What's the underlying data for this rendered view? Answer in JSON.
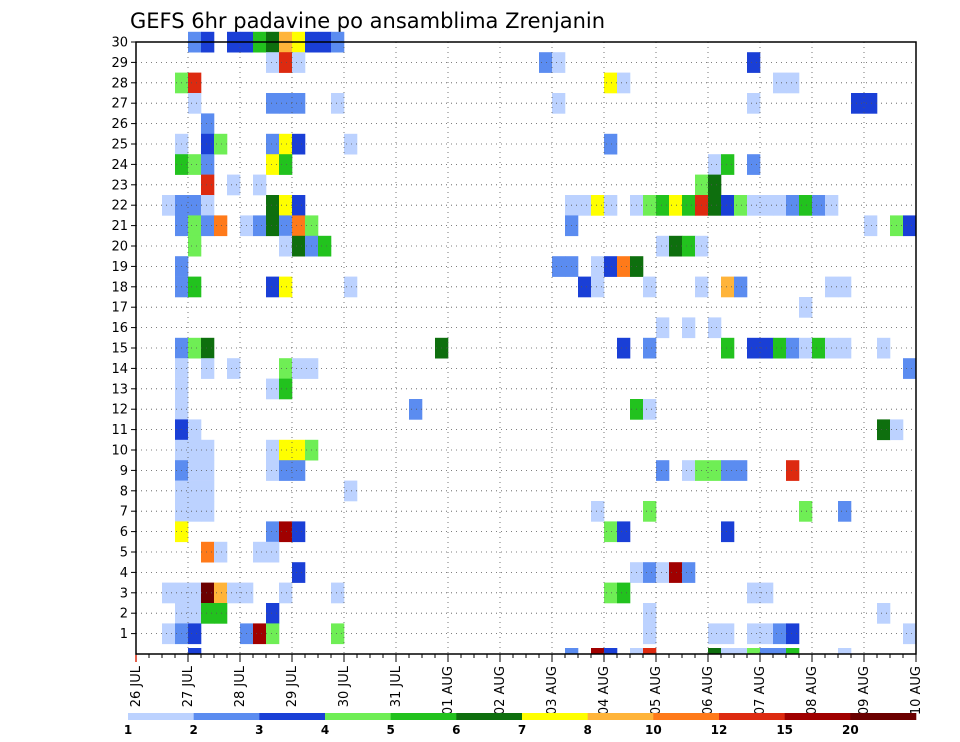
{
  "chart_data": {
    "type": "heatmap",
    "title": "GEFS 6hr padavine po ansamblima Zrenjanin",
    "xlabel": "",
    "ylabel": "",
    "x_tick_labels": [
      "26 JUL",
      "27 JUL",
      "28 JUL",
      "29 JUL",
      "30 JUL",
      "31 JUL",
      "01 AUG",
      "02 AUG",
      "03 AUG",
      "04 AUG",
      "05 AUG",
      "06 AUG",
      "07 AUG",
      "08 AUG",
      "09 AUG",
      "10 AUG"
    ],
    "y_tick_labels": [
      "1",
      "2",
      "3",
      "4",
      "5",
      "6",
      "7",
      "8",
      "9",
      "10",
      "11",
      "12",
      "13",
      "14",
      "15",
      "16",
      "17",
      "18",
      "19",
      "20",
      "21",
      "22",
      "23",
      "24",
      "25",
      "26",
      "27",
      "28",
      "29",
      "30"
    ],
    "x_step_hours": 6,
    "n_time_steps": 60,
    "ylim": [
      0,
      30
    ],
    "grid": true,
    "colorbar": {
      "placement": "bottom",
      "tick_labels": [
        "1",
        "2",
        "3",
        "4",
        "5",
        "6",
        "7",
        "8",
        "10",
        "12",
        "15",
        "20"
      ],
      "colors": [
        "#bcd2ff",
        "#5b8cf0",
        "#1a3fd6",
        "#6fee55",
        "#22c21e",
        "#0e6f0e",
        "#ffff00",
        "#ffb43a",
        "#ff7a1a",
        "#dd2a10",
        "#a00000",
        "#6b0000"
      ]
    },
    "cells": [
      {
        "y": 30,
        "x": [
          [
            4,
            2
          ],
          [
            5,
            3
          ],
          [
            7,
            3
          ],
          [
            8,
            3
          ],
          [
            9,
            5
          ],
          [
            10,
            6
          ],
          [
            11,
            8
          ],
          [
            12,
            7
          ],
          [
            13,
            3
          ],
          [
            14,
            3
          ],
          [
            15,
            2
          ]
        ]
      },
      {
        "y": 29,
        "x": [
          [
            10,
            1
          ],
          [
            11,
            10
          ],
          [
            12,
            1
          ],
          [
            31,
            2
          ],
          [
            32,
            1
          ],
          [
            47,
            3
          ]
        ]
      },
      {
        "y": 28,
        "x": [
          [
            3,
            4
          ],
          [
            4,
            10
          ],
          [
            36,
            7
          ],
          [
            37,
            1
          ],
          [
            49,
            1
          ],
          [
            50,
            1
          ]
        ]
      },
      {
        "y": 27,
        "x": [
          [
            4,
            1
          ],
          [
            10,
            2
          ],
          [
            11,
            2
          ],
          [
            12,
            2
          ],
          [
            15,
            1
          ],
          [
            32,
            1
          ],
          [
            47,
            1
          ],
          [
            55,
            3
          ],
          [
            56,
            3
          ]
        ]
      },
      {
        "y": 26,
        "x": [
          [
            5,
            2
          ]
        ]
      },
      {
        "y": 25,
        "x": [
          [
            3,
            1
          ],
          [
            5,
            3
          ],
          [
            6,
            4
          ],
          [
            10,
            2
          ],
          [
            11,
            7
          ],
          [
            12,
            3
          ],
          [
            16,
            1
          ],
          [
            36,
            2
          ]
        ]
      },
      {
        "y": 24,
        "x": [
          [
            3,
            5
          ],
          [
            4,
            4
          ],
          [
            5,
            2
          ],
          [
            10,
            7
          ],
          [
            11,
            5
          ],
          [
            44,
            1
          ],
          [
            45,
            5
          ],
          [
            47,
            2
          ]
        ]
      },
      {
        "y": 23,
        "x": [
          [
            5,
            10
          ],
          [
            7,
            1
          ],
          [
            9,
            1
          ],
          [
            43,
            4
          ],
          [
            44,
            6
          ]
        ]
      },
      {
        "y": 22,
        "x": [
          [
            2,
            1
          ],
          [
            3,
            2
          ],
          [
            4,
            2
          ],
          [
            5,
            1
          ],
          [
            10,
            6
          ],
          [
            11,
            7
          ],
          [
            12,
            3
          ],
          [
            33,
            1
          ],
          [
            34,
            1
          ],
          [
            35,
            7
          ],
          [
            36,
            1
          ],
          [
            38,
            1
          ],
          [
            39,
            4
          ],
          [
            40,
            5
          ],
          [
            41,
            7
          ],
          [
            42,
            5
          ],
          [
            43,
            10
          ],
          [
            44,
            6
          ],
          [
            45,
            3
          ],
          [
            46,
            4
          ],
          [
            47,
            1
          ],
          [
            48,
            1
          ],
          [
            49,
            1
          ],
          [
            50,
            2
          ],
          [
            51,
            5
          ],
          [
            52,
            2
          ],
          [
            53,
            1
          ]
        ]
      },
      {
        "y": 21,
        "x": [
          [
            3,
            2
          ],
          [
            4,
            4
          ],
          [
            5,
            2
          ],
          [
            6,
            9
          ],
          [
            8,
            1
          ],
          [
            9,
            2
          ],
          [
            10,
            6
          ],
          [
            11,
            2
          ],
          [
            12,
            9
          ],
          [
            13,
            4
          ],
          [
            33,
            2
          ],
          [
            56,
            1
          ],
          [
            58,
            4
          ],
          [
            59,
            3
          ]
        ]
      },
      {
        "y": 20,
        "x": [
          [
            4,
            4
          ],
          [
            11,
            1
          ],
          [
            12,
            6
          ],
          [
            13,
            2
          ],
          [
            14,
            5
          ],
          [
            40,
            1
          ],
          [
            41,
            6
          ],
          [
            42,
            5
          ],
          [
            43,
            1
          ]
        ]
      },
      {
        "y": 19,
        "x": [
          [
            3,
            2
          ],
          [
            32,
            2
          ],
          [
            33,
            2
          ],
          [
            35,
            1
          ],
          [
            36,
            3
          ],
          [
            37,
            9
          ],
          [
            38,
            6
          ]
        ]
      },
      {
        "y": 18,
        "x": [
          [
            3,
            2
          ],
          [
            4,
            5
          ],
          [
            10,
            3
          ],
          [
            11,
            7
          ],
          [
            16,
            1
          ],
          [
            34,
            3
          ],
          [
            35,
            1
          ],
          [
            39,
            1
          ],
          [
            43,
            1
          ],
          [
            45,
            8
          ],
          [
            46,
            2
          ],
          [
            53,
            1
          ],
          [
            54,
            1
          ]
        ]
      },
      {
        "y": 17,
        "x": [
          [
            51,
            1
          ]
        ]
      },
      {
        "y": 16,
        "x": [
          [
            40,
            1
          ],
          [
            42,
            1
          ],
          [
            44,
            1
          ]
        ]
      },
      {
        "y": 15,
        "x": [
          [
            3,
            2
          ],
          [
            4,
            4
          ],
          [
            5,
            6
          ],
          [
            23,
            6
          ],
          [
            37,
            3
          ],
          [
            39,
            2
          ],
          [
            45,
            5
          ],
          [
            47,
            3
          ],
          [
            48,
            3
          ],
          [
            49,
            5
          ],
          [
            50,
            2
          ],
          [
            51,
            1
          ],
          [
            52,
            5
          ],
          [
            53,
            1
          ],
          [
            54,
            1
          ],
          [
            57,
            1
          ]
        ]
      },
      {
        "y": 14,
        "x": [
          [
            3,
            1
          ],
          [
            5,
            1
          ],
          [
            7,
            1
          ],
          [
            11,
            4
          ],
          [
            12,
            1
          ],
          [
            13,
            1
          ],
          [
            59,
            2
          ]
        ]
      },
      {
        "y": 13,
        "x": [
          [
            3,
            1
          ],
          [
            10,
            1
          ],
          [
            11,
            5
          ]
        ]
      },
      {
        "y": 12,
        "x": [
          [
            3,
            1
          ],
          [
            21,
            2
          ],
          [
            38,
            5
          ],
          [
            39,
            1
          ]
        ]
      },
      {
        "y": 11,
        "x": [
          [
            3,
            3
          ],
          [
            4,
            1
          ],
          [
            57,
            6
          ],
          [
            58,
            1
          ]
        ]
      },
      {
        "y": 10,
        "x": [
          [
            3,
            1
          ],
          [
            4,
            1
          ],
          [
            5,
            1
          ],
          [
            10,
            1
          ],
          [
            11,
            7
          ],
          [
            12,
            7
          ],
          [
            13,
            4
          ]
        ]
      },
      {
        "y": 9,
        "x": [
          [
            3,
            2
          ],
          [
            4,
            1
          ],
          [
            5,
            1
          ],
          [
            10,
            1
          ],
          [
            11,
            2
          ],
          [
            12,
            2
          ],
          [
            40,
            2
          ],
          [
            42,
            1
          ],
          [
            43,
            4
          ],
          [
            44,
            4
          ],
          [
            45,
            2
          ],
          [
            46,
            2
          ],
          [
            50,
            10
          ]
        ]
      },
      {
        "y": 8,
        "x": [
          [
            3,
            1
          ],
          [
            4,
            1
          ],
          [
            5,
            1
          ],
          [
            16,
            1
          ]
        ]
      },
      {
        "y": 7,
        "x": [
          [
            3,
            1
          ],
          [
            4,
            1
          ],
          [
            5,
            1
          ],
          [
            35,
            1
          ],
          [
            39,
            4
          ],
          [
            51,
            4
          ],
          [
            54,
            2
          ]
        ]
      },
      {
        "y": 6,
        "x": [
          [
            3,
            7
          ],
          [
            10,
            2
          ],
          [
            11,
            11
          ],
          [
            12,
            3
          ],
          [
            36,
            4
          ],
          [
            37,
            3
          ],
          [
            45,
            3
          ]
        ]
      },
      {
        "y": 5,
        "x": [
          [
            5,
            9
          ],
          [
            6,
            1
          ],
          [
            9,
            1
          ],
          [
            10,
            1
          ]
        ]
      },
      {
        "y": 4,
        "x": [
          [
            12,
            3
          ],
          [
            38,
            1
          ],
          [
            39,
            2
          ],
          [
            40,
            1
          ],
          [
            41,
            11
          ],
          [
            42,
            2
          ]
        ]
      },
      {
        "y": 3,
        "x": [
          [
            2,
            1
          ],
          [
            3,
            1
          ],
          [
            4,
            1
          ],
          [
            5,
            12
          ],
          [
            6,
            8
          ],
          [
            7,
            1
          ],
          [
            8,
            1
          ],
          [
            11,
            1
          ],
          [
            15,
            1
          ],
          [
            36,
            4
          ],
          [
            37,
            5
          ],
          [
            47,
            1
          ],
          [
            48,
            1
          ]
        ]
      },
      {
        "y": 2,
        "x": [
          [
            3,
            1
          ],
          [
            4,
            1
          ],
          [
            5,
            5
          ],
          [
            6,
            5
          ],
          [
            10,
            3
          ],
          [
            39,
            1
          ],
          [
            57,
            1
          ]
        ]
      },
      {
        "y": 1,
        "x": [
          [
            2,
            1
          ],
          [
            3,
            2
          ],
          [
            4,
            3
          ],
          [
            8,
            2
          ],
          [
            9,
            11
          ],
          [
            10,
            4
          ],
          [
            15,
            4
          ],
          [
            39,
            1
          ],
          [
            44,
            1
          ],
          [
            45,
            1
          ],
          [
            47,
            1
          ],
          [
            48,
            1
          ],
          [
            49,
            2
          ],
          [
            50,
            3
          ],
          [
            59,
            1
          ]
        ]
      },
      {
        "y": 0,
        "x": [
          [
            4,
            3
          ],
          [
            33,
            2
          ],
          [
            35,
            11
          ],
          [
            36,
            3
          ],
          [
            38,
            1
          ],
          [
            39,
            10
          ],
          [
            44,
            6
          ],
          [
            45,
            1
          ],
          [
            46,
            1
          ],
          [
            47,
            4
          ],
          [
            48,
            2
          ],
          [
            49,
            2
          ],
          [
            50,
            5
          ],
          [
            54,
            1
          ]
        ]
      }
    ]
  }
}
